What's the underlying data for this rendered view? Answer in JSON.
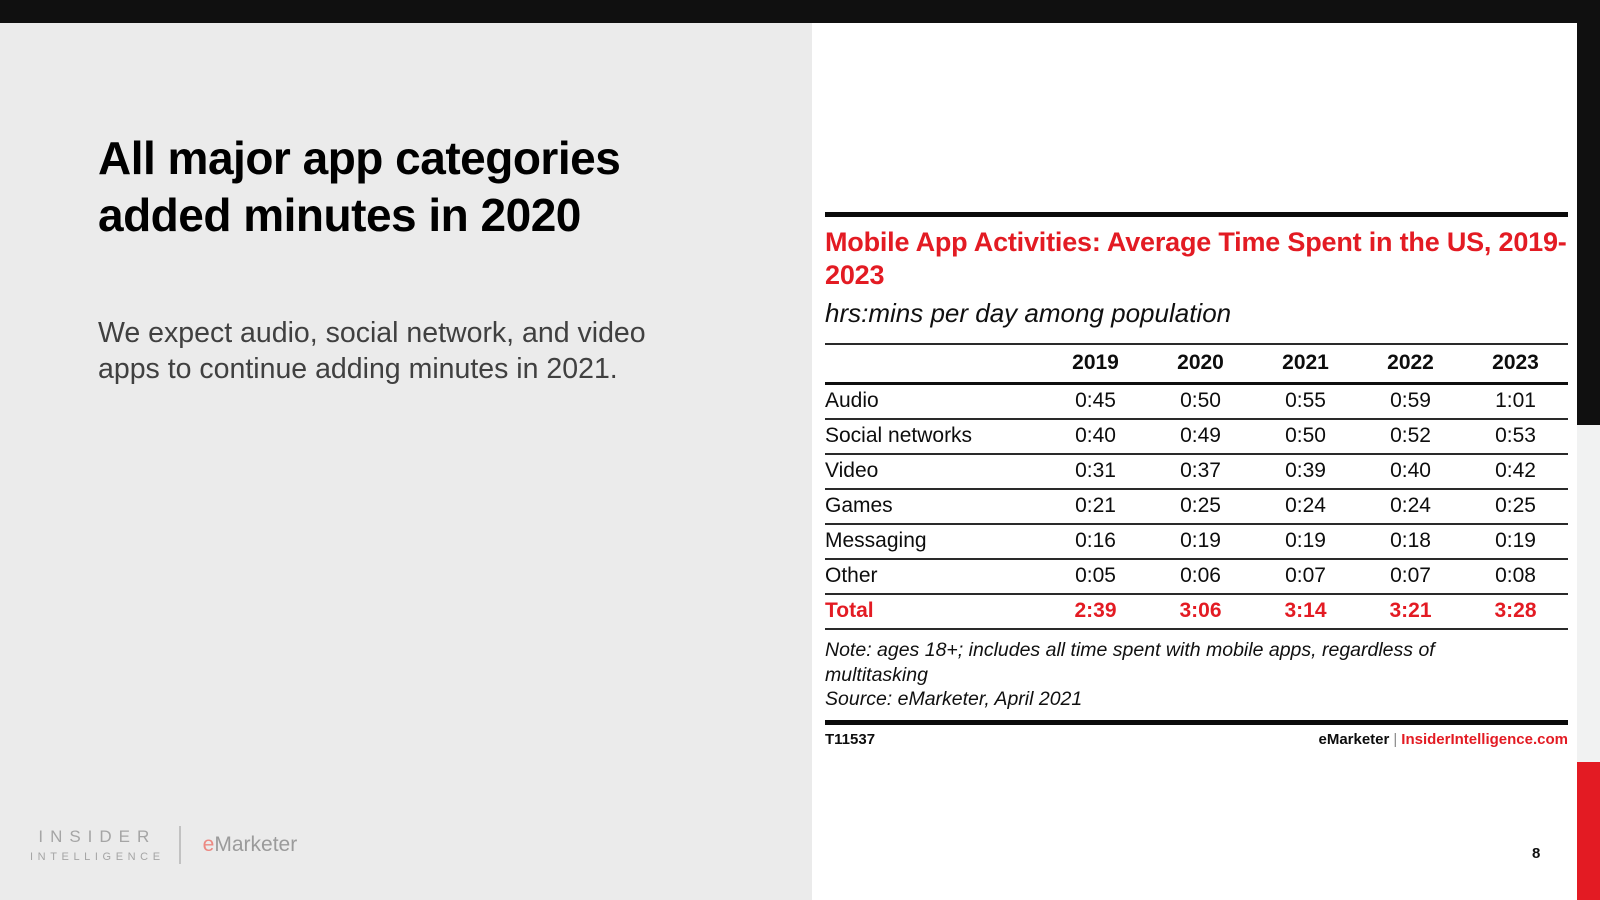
{
  "page": {
    "number": "8"
  },
  "left_panel": {
    "title": "All major app categories added minutes in 2020",
    "body": "We expect audio, social network, and video apps to continue adding minutes in 2021.",
    "logo": {
      "line1": "INSIDER",
      "line2": "INTELLIGENCE",
      "emarketer_e": "e",
      "emarketer_rest": "Marketer"
    }
  },
  "chart": {
    "note": "Note: ages 18+; includes all time spent with mobile apps, regardless of multitasking",
    "source": "Source: eMarketer, April 2021",
    "id": "T11537",
    "brand": {
      "left": "eMarketer",
      "separator": "|",
      "right": "InsiderIntelligence.com"
    }
  },
  "chart_data": {
    "type": "table",
    "title": "Mobile App Activities: Average Time Spent in the US, 2019-2023",
    "subtitle": "hrs:mins per day among population",
    "unit": "hrs:mins per day",
    "columns": [
      "2019",
      "2020",
      "2021",
      "2022",
      "2023"
    ],
    "rows": [
      {
        "label": "Audio",
        "values": [
          "0:45",
          "0:50",
          "0:55",
          "0:59",
          "1:01"
        ]
      },
      {
        "label": "Social networks",
        "values": [
          "0:40",
          "0:49",
          "0:50",
          "0:52",
          "0:53"
        ]
      },
      {
        "label": "Video",
        "values": [
          "0:31",
          "0:37",
          "0:39",
          "0:40",
          "0:42"
        ]
      },
      {
        "label": "Games",
        "values": [
          "0:21",
          "0:25",
          "0:24",
          "0:24",
          "0:25"
        ]
      },
      {
        "label": "Messaging",
        "values": [
          "0:16",
          "0:19",
          "0:19",
          "0:18",
          "0:19"
        ]
      },
      {
        "label": "Other",
        "values": [
          "0:05",
          "0:06",
          "0:07",
          "0:07",
          "0:08"
        ]
      },
      {
        "label": "Total",
        "values": [
          "2:39",
          "3:06",
          "3:14",
          "3:21",
          "3:28"
        ],
        "highlight": true
      }
    ],
    "grid": "horizontal-rules",
    "legend_position": "none"
  },
  "colors": {
    "accent_red": "#e31b23",
    "top_bar_black": "#101010",
    "left_panel_bg": "#ebebeb",
    "right_strip_gray": "#f1f2f2",
    "body_text_gray": "#404040",
    "logo_gray": "#a5a5a5",
    "logo_e_salmon": "#ec8982"
  }
}
